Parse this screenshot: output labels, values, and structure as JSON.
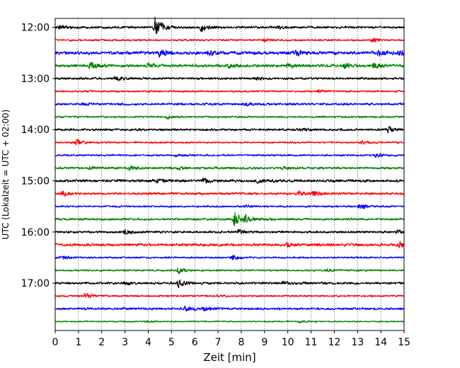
{
  "chart_data": {
    "type": "line",
    "title": "",
    "xlabel": "Zeit  [min]",
    "ylabel": "UTC (Lokalzeit = UTC + 02:00)",
    "xlim": [
      0,
      15
    ],
    "xticks": [
      0,
      1,
      2,
      3,
      4,
      5,
      6,
      7,
      8,
      9,
      10,
      11,
      12,
      13,
      14,
      15
    ],
    "xtick_labels": [
      "0",
      "1",
      "2",
      "3",
      "4",
      "5",
      "6",
      "7",
      "8",
      "9",
      "10",
      "11",
      "12",
      "13",
      "14",
      "15"
    ],
    "ylim_rows": [
      -0.7,
      23.7
    ],
    "ytick_rows": [
      0,
      4,
      8,
      12,
      16,
      20
    ],
    "ytick_labels": [
      "12:00",
      "13:00",
      "14:00",
      "15:00",
      "16:00",
      "17:00"
    ],
    "grid": "x-dotted",
    "colors": [
      "#000000",
      "#ff0000",
      "#0000ff",
      "#008000"
    ],
    "series": [
      {
        "start": "12:00",
        "color": "#000000",
        "base_amplitude": 0.1,
        "events": [
          {
            "t": 4.3,
            "amp": 0.9
          },
          {
            "t": 6.3,
            "amp": 0.35
          },
          {
            "t": 0.2,
            "amp": 0.2
          },
          {
            "t": 9.6,
            "amp": 0.15
          }
        ]
      },
      {
        "start": "12:15",
        "color": "#ff0000",
        "base_amplitude": 0.08,
        "events": [
          {
            "t": 9.0,
            "amp": 0.15
          },
          {
            "t": 13.6,
            "amp": 0.15
          }
        ]
      },
      {
        "start": "12:30",
        "color": "#0000ff",
        "base_amplitude": 0.14,
        "events": [
          {
            "t": 4.5,
            "amp": 0.25
          },
          {
            "t": 6.6,
            "amp": 0.2
          },
          {
            "t": 10.4,
            "amp": 0.22
          },
          {
            "t": 13.9,
            "amp": 0.25
          },
          {
            "t": 14.8,
            "amp": 0.2
          }
        ]
      },
      {
        "start": "12:45",
        "color": "#008000",
        "base_amplitude": 0.12,
        "events": [
          {
            "t": 1.5,
            "amp": 0.35
          },
          {
            "t": 4.0,
            "amp": 0.2
          },
          {
            "t": 7.5,
            "amp": 0.2
          },
          {
            "t": 10.0,
            "amp": 0.22
          },
          {
            "t": 12.4,
            "amp": 0.25
          },
          {
            "t": 13.7,
            "amp": 0.3
          }
        ]
      },
      {
        "start": "13:00",
        "color": "#000000",
        "base_amplitude": 0.1,
        "events": [
          {
            "t": 2.6,
            "amp": 0.15
          },
          {
            "t": 8.6,
            "amp": 0.15
          }
        ]
      },
      {
        "start": "13:15",
        "color": "#ff0000",
        "base_amplitude": 0.08,
        "events": [
          {
            "t": 11.3,
            "amp": 0.12
          }
        ]
      },
      {
        "start": "13:30",
        "color": "#0000ff",
        "base_amplitude": 0.1,
        "events": [
          {
            "t": 1.2,
            "amp": 0.12
          },
          {
            "t": 8.2,
            "amp": 0.12
          }
        ]
      },
      {
        "start": "13:45",
        "color": "#008000",
        "base_amplitude": 0.08,
        "events": [
          {
            "t": 4.8,
            "amp": 0.12
          }
        ]
      },
      {
        "start": "14:00",
        "color": "#000000",
        "base_amplitude": 0.1,
        "events": [
          {
            "t": 14.3,
            "amp": 0.3
          },
          {
            "t": 10.6,
            "amp": 0.15
          }
        ]
      },
      {
        "start": "14:15",
        "color": "#ff0000",
        "base_amplitude": 0.08,
        "events": [
          {
            "t": 0.9,
            "amp": 0.25
          },
          {
            "t": 13.2,
            "amp": 0.12
          }
        ]
      },
      {
        "start": "14:30",
        "color": "#0000ff",
        "base_amplitude": 0.08,
        "events": [
          {
            "t": 13.8,
            "amp": 0.2
          },
          {
            "t": 5.2,
            "amp": 0.1
          }
        ]
      },
      {
        "start": "14:45",
        "color": "#008000",
        "base_amplitude": 0.1,
        "events": [
          {
            "t": 1.5,
            "amp": 0.15
          },
          {
            "t": 3.2,
            "amp": 0.18
          },
          {
            "t": 5.3,
            "amp": 0.12
          },
          {
            "t": 9.8,
            "amp": 0.12
          }
        ]
      },
      {
        "start": "15:00",
        "color": "#000000",
        "base_amplitude": 0.12,
        "events": [
          {
            "t": 4.4,
            "amp": 0.2
          },
          {
            "t": 6.4,
            "amp": 0.25
          },
          {
            "t": 8.7,
            "amp": 0.15
          }
        ]
      },
      {
        "start": "15:15",
        "color": "#ff0000",
        "base_amplitude": 0.1,
        "events": [
          {
            "t": 0.3,
            "amp": 0.18
          },
          {
            "t": 10.5,
            "amp": 0.2
          },
          {
            "t": 11.1,
            "amp": 0.25
          }
        ]
      },
      {
        "start": "15:30",
        "color": "#0000ff",
        "base_amplitude": 0.08,
        "events": [
          {
            "t": 13.1,
            "amp": 0.28
          },
          {
            "t": 8.2,
            "amp": 0.1
          }
        ]
      },
      {
        "start": "15:45",
        "color": "#008000",
        "base_amplitude": 0.1,
        "events": [
          {
            "t": 7.7,
            "amp": 0.75
          },
          {
            "t": 8.2,
            "amp": 0.3
          }
        ]
      },
      {
        "start": "16:00",
        "color": "#000000",
        "base_amplitude": 0.1,
        "events": [
          {
            "t": 3.0,
            "amp": 0.2
          },
          {
            "t": 7.9,
            "amp": 0.18
          },
          {
            "t": 14.7,
            "amp": 0.15
          }
        ]
      },
      {
        "start": "16:15",
        "color": "#ff0000",
        "base_amplitude": 0.12,
        "events": [
          {
            "t": 10.0,
            "amp": 0.15
          },
          {
            "t": 14.8,
            "amp": 0.3
          }
        ]
      },
      {
        "start": "16:30",
        "color": "#0000ff",
        "base_amplitude": 0.08,
        "events": [
          {
            "t": 0.3,
            "amp": 0.2
          },
          {
            "t": 7.6,
            "amp": 0.3
          }
        ]
      },
      {
        "start": "16:45",
        "color": "#008000",
        "base_amplitude": 0.08,
        "events": [
          {
            "t": 5.3,
            "amp": 0.25
          },
          {
            "t": 11.7,
            "amp": 0.1
          }
        ]
      },
      {
        "start": "17:00",
        "color": "#000000",
        "base_amplitude": 0.1,
        "events": [
          {
            "t": 5.3,
            "amp": 0.35
          },
          {
            "t": 3.0,
            "amp": 0.15
          },
          {
            "t": 9.8,
            "amp": 0.12
          }
        ]
      },
      {
        "start": "17:15",
        "color": "#ff0000",
        "base_amplitude": 0.08,
        "events": [
          {
            "t": 1.3,
            "amp": 0.25
          },
          {
            "t": 7.0,
            "amp": 0.1
          }
        ]
      },
      {
        "start": "17:30",
        "color": "#0000ff",
        "base_amplitude": 0.1,
        "events": [
          {
            "t": 5.6,
            "amp": 0.3
          },
          {
            "t": 6.4,
            "amp": 0.2
          }
        ]
      },
      {
        "start": "17:45",
        "color": "#008000",
        "base_amplitude": 0.06,
        "events": [
          {
            "t": 3.9,
            "amp": 0.1
          },
          {
            "t": 10.5,
            "amp": 0.08
          }
        ]
      }
    ]
  }
}
